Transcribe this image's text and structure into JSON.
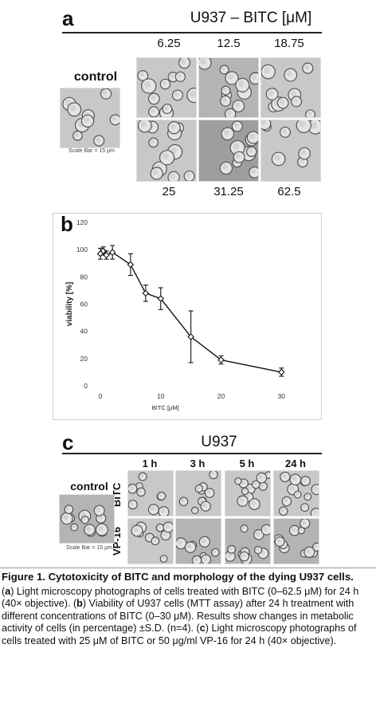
{
  "panel_a": {
    "letter": "a",
    "header": "U937 – BITC [μM]",
    "control_label": "control",
    "scale_bar": "Scale Bar = 15 μm",
    "top_concentrations": [
      "6.25",
      "12.5",
      "18.75"
    ],
    "bottom_concentrations": [
      "25",
      "31.25",
      "62.5"
    ]
  },
  "panel_b": {
    "letter": "b"
  },
  "chart_data": {
    "type": "line",
    "xlabel": "BITC [μM]",
    "ylabel": "viability [%]",
    "xlim": [
      0,
      33
    ],
    "ylim": [
      0,
      120
    ],
    "x_ticks": [
      "0",
      "10",
      "20",
      "30"
    ],
    "y_ticks": [
      "0",
      "20",
      "40",
      "60",
      "80",
      "100",
      "120"
    ],
    "series": [
      {
        "x": [
          0,
          0.5,
          1,
          2,
          5,
          7.5,
          10,
          15,
          20,
          30
        ],
        "y": [
          97,
          99,
          96,
          98,
          89,
          68,
          64,
          36,
          19,
          10
        ],
        "error": [
          4,
          3,
          3,
          5,
          8,
          6,
          8,
          19,
          3,
          3
        ]
      }
    ],
    "grid": false
  },
  "panel_c": {
    "letter": "c",
    "header": "U937",
    "control_label": "control",
    "scale_bar": "Scale Bar = 15 μm",
    "time_labels": [
      "1 h",
      "3 h",
      "5 h",
      "24 h"
    ],
    "row_labels": [
      "BITC",
      "VP-16"
    ]
  },
  "caption": {
    "title": "Figure 1. Cytotoxicity of BITC and morphology of the dying U937 cells.",
    "tag_a": "a",
    "text_a": ") Light microscopy photographs of cells treated with BITC (0–62.5 μM) for 24 h (40× objective). (",
    "tag_b": "b",
    "text_b": ") Viability of U937 cells (MTT assay) after 24 h treatment with different concentrations of BITC (0–30 μM). Results show changes in metabolic activity of cells (in percentage) ±S.D. (n=4). (",
    "tag_c": "c",
    "text_c": ") Light microscopy photographs of cells treated with 25 μM of BITC or 50 μg/ml VP-16 for 24 h (40× objective)."
  },
  "colors": {
    "background": "#ffffff",
    "micro_light": "#c8c8c8",
    "micro_mid": "#b4b4b4",
    "micro_dark": "#9e9e9e",
    "line": "#111111"
  }
}
